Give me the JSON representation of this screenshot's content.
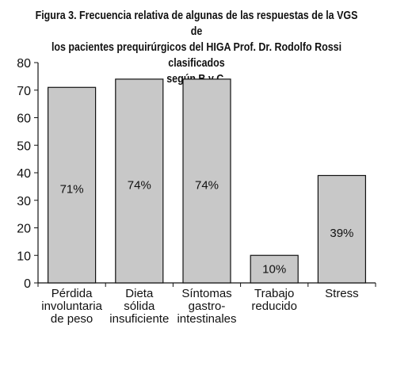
{
  "chart_data": {
    "type": "bar",
    "title_lines": [
      "Figura 3. Frecuencia relativa de algunas de las respuestas de la VGS de",
      "los pacientes prequirúrgicos del HIGA Prof. Dr. Rodolfo Rossi clasificados",
      "según B y C."
    ],
    "categories": [
      [
        "Pérdida",
        "involuntaria",
        "de peso"
      ],
      [
        "Dieta",
        "sólida",
        "insuficiente"
      ],
      [
        "Síntomas",
        "gastro-",
        "intestinales"
      ],
      [
        "Trabajo",
        "reducido"
      ],
      [
        "Stress"
      ]
    ],
    "values": [
      71,
      74,
      74,
      10,
      39
    ],
    "data_labels": [
      "71%",
      "74%",
      "74%",
      "10%",
      "39%"
    ],
    "ylim": [
      0,
      80
    ],
    "yticks": [
      0,
      10,
      20,
      30,
      40,
      50,
      60,
      70,
      80
    ],
    "xlabel": "",
    "ylabel": "",
    "grid": false,
    "colors": {
      "bar_fill": "#c8c8c8",
      "bar_stroke": "#111111",
      "axis": "#111111"
    }
  }
}
